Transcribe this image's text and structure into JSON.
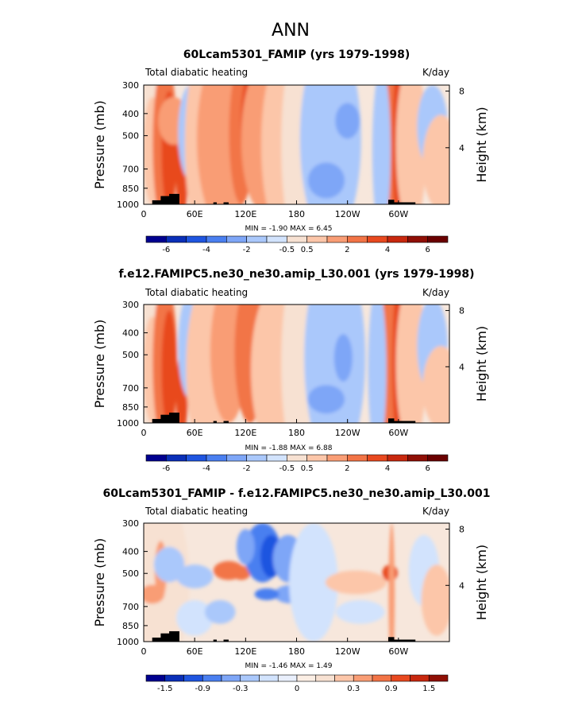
{
  "figure_title": "ANN",
  "chart_data": [
    {
      "type": "heatmap",
      "title": "60Lcam5301_FAMIP (yrs 1979-1998)",
      "left_label": "Total diabatic heating",
      "units": "K/day",
      "xlabel": "",
      "ylabel": "Pressure (mb)",
      "y2label": "Height (km)",
      "x_ticks": [
        "0",
        "60E",
        "120E",
        "180",
        "120W",
        "60W"
      ],
      "x_tick_values": [
        0,
        60,
        120,
        180,
        240,
        300
      ],
      "xlim": [
        0,
        360
      ],
      "y_ticks": [
        "300",
        "400",
        "500",
        "700",
        "850",
        "1000"
      ],
      "y_tick_values": [
        300,
        400,
        500,
        700,
        850,
        1000
      ],
      "ylim": [
        300,
        1000
      ],
      "y2_ticks": [
        "8",
        "4"
      ],
      "y2_tick_values": [
        8,
        4
      ],
      "min": "-1.90",
      "max": "6.45",
      "stats_text": "MIN =   -1.90   MAX =    6.45",
      "colorbar_labels": [
        "-6",
        "-4",
        "-2",
        "-0.5",
        "0.5",
        "2",
        "4",
        "6"
      ],
      "colorbar_levels": [
        -7,
        -6,
        -5,
        -4,
        -3,
        -2,
        -1,
        -0.5,
        0,
        0.5,
        1,
        2,
        3,
        4,
        5,
        6,
        7
      ]
    },
    {
      "type": "heatmap",
      "title": "f.e12.FAMIPC5.ne30_ne30.amip_L30.001 (yrs 1979-1998)",
      "left_label": "Total diabatic heating",
      "units": "K/day",
      "xlabel": "",
      "ylabel": "Pressure (mb)",
      "y2label": "Height (km)",
      "x_ticks": [
        "0",
        "60E",
        "120E",
        "180",
        "120W",
        "60W"
      ],
      "x_tick_values": [
        0,
        60,
        120,
        180,
        240,
        300
      ],
      "xlim": [
        0,
        360
      ],
      "y_ticks": [
        "300",
        "400",
        "500",
        "700",
        "850",
        "1000"
      ],
      "y_tick_values": [
        300,
        400,
        500,
        700,
        850,
        1000
      ],
      "ylim": [
        300,
        1000
      ],
      "y2_ticks": [
        "8",
        "4"
      ],
      "y2_tick_values": [
        8,
        4
      ],
      "min": "-1.88",
      "max": "6.88",
      "stats_text": "MIN =   -1.88   MAX =    6.88",
      "colorbar_labels": [
        "-6",
        "-4",
        "-2",
        "-0.5",
        "0.5",
        "2",
        "4",
        "6"
      ],
      "colorbar_levels": [
        -7,
        -6,
        -5,
        -4,
        -3,
        -2,
        -1,
        -0.5,
        0,
        0.5,
        1,
        2,
        3,
        4,
        5,
        6,
        7
      ]
    },
    {
      "type": "heatmap",
      "title": "60Lcam5301_FAMIP - f.e12.FAMIPC5.ne30_ne30.amip_L30.001",
      "left_label": "Total diabatic heating",
      "units": "K/day",
      "xlabel": "",
      "ylabel": "Pressure (mb)",
      "y2label": "Height (km)",
      "x_ticks": [
        "0",
        "60E",
        "120E",
        "180",
        "120W",
        "60W"
      ],
      "x_tick_values": [
        0,
        60,
        120,
        180,
        240,
        300
      ],
      "xlim": [
        0,
        360
      ],
      "y_ticks": [
        "300",
        "400",
        "500",
        "700",
        "850",
        "1000"
      ],
      "y_tick_values": [
        300,
        400,
        500,
        700,
        850,
        1000
      ],
      "ylim": [
        300,
        1000
      ],
      "y2_ticks": [
        "8",
        "4"
      ],
      "y2_tick_values": [
        8,
        4
      ],
      "min": "-1.46",
      "max": "1.49",
      "stats_text": "MIN =   -1.46   MAX =    1.49",
      "colorbar_labels": [
        "-1.5",
        "-0.9",
        "-0.3",
        "0",
        "0.3",
        "0.9",
        "1.5"
      ],
      "colorbar_levels": [
        -1.8,
        -1.5,
        -1.2,
        -0.9,
        -0.6,
        -0.3,
        -0.15,
        0,
        0.15,
        0.3,
        0.6,
        0.9,
        1.2,
        1.5,
        1.8
      ]
    }
  ],
  "colors": {
    "palette": [
      "#00008f",
      "#0a2fb8",
      "#1f55e0",
      "#4a7ff0",
      "#7ea6f7",
      "#aac8fb",
      "#d2e3fd",
      "#f7e1d2",
      "#fcc6a9",
      "#f99d75",
      "#f27446",
      "#e8491f",
      "#c8280e",
      "#8f0f05",
      "#6a0000"
    ],
    "cb_diff": [
      "#00008f",
      "#0a2fb8",
      "#1f55e0",
      "#4a7ff0",
      "#7ea6f7",
      "#aac8fb",
      "#d2e3fd",
      "#e9effc",
      "#fbeee4",
      "#f7e1d2",
      "#fcc6a9",
      "#f99d75",
      "#f27446",
      "#e8491f",
      "#c8280e",
      "#8f0f05"
    ],
    "background_tint": "#f7e7dc",
    "topography": "#000000"
  }
}
